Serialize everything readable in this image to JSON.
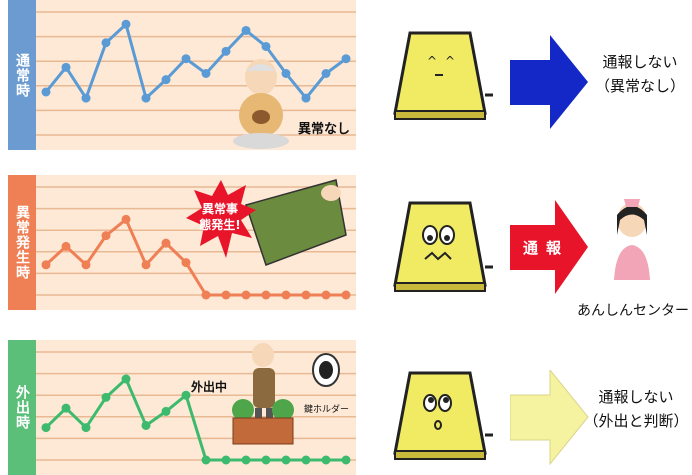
{
  "rows": [
    {
      "label": "通常時",
      "color": "#6b9bd1",
      "line_color": "#5b9bd5",
      "series": [
        0.35,
        0.55,
        0.3,
        0.75,
        0.9,
        0.3,
        0.45,
        0.62,
        0.5,
        0.68,
        0.85,
        0.72,
        0.5,
        0.3,
        0.5,
        0.62
      ],
      "figure_label": "異常なし",
      "caption_line1": "通報しない",
      "caption_line2": "（異常なし）",
      "arrow_color": "#1428c8"
    },
    {
      "label": "異常発生時",
      "color": "#ef7f55",
      "line_color": "#ef7f55",
      "series": [
        0.28,
        0.45,
        0.28,
        0.55,
        0.7,
        0.28,
        0.48,
        0.3,
        0.0,
        0.0,
        0.0,
        0.0,
        0.0,
        0.0,
        0.0,
        0.0
      ],
      "burst_text": "異常事態発生!",
      "badge_text": "通報",
      "center_label": "あんしんセンター",
      "arrow_color": "#e8142a"
    },
    {
      "label": "外出時",
      "color": "#5bbf7a",
      "line_color": "#3dba6e",
      "series": [
        0.3,
        0.48,
        0.3,
        0.58,
        0.75,
        0.32,
        0.45,
        0.6,
        0.0,
        0.0,
        0.0,
        0.0,
        0.0,
        0.0,
        0.0,
        0.0
      ],
      "figure_label": "外出中",
      "key_label": "鍵ホルダー",
      "caption_line1": "通報しない",
      "caption_line2": "（外出と判断）",
      "arrow_color": "#f6f3a0"
    }
  ]
}
